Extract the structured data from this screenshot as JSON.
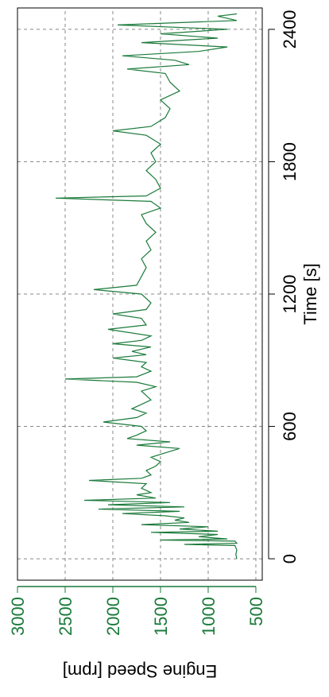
{
  "chart_data": {
    "type": "line",
    "xlabel": "Time [s]",
    "ylabel": "Engine Speed [rpm]",
    "x": [
      0,
      20,
      40,
      60,
      65,
      70,
      80,
      85,
      90,
      100,
      110,
      120,
      125,
      135,
      145,
      155,
      165,
      175,
      185,
      195,
      205,
      215,
      225,
      235,
      245,
      255,
      265,
      275,
      290,
      300,
      320,
      340,
      355,
      365,
      380,
      400,
      420,
      440,
      460,
      480,
      500,
      515,
      530,
      545,
      560,
      580,
      600,
      620,
      640,
      660,
      680,
      700,
      720,
      740,
      760,
      780,
      800,
      815,
      825,
      850,
      870,
      890,
      910,
      925,
      940,
      960,
      975,
      990,
      1010,
      1040,
      1060,
      1090,
      1110,
      1130,
      1160,
      1200,
      1220,
      1240,
      1280,
      1320,
      1360,
      1400,
      1440,
      1480,
      1520,
      1560,
      1590,
      1620,
      1635,
      1645,
      1680,
      1720,
      1760,
      1800,
      1840,
      1880,
      1920,
      1940,
      1960,
      2000,
      2040,
      2080,
      2120,
      2160,
      2200,
      2220,
      2240,
      2260,
      2280,
      2300,
      2320,
      2340,
      2360,
      2380,
      2400,
      2420,
      2440,
      2460,
      2470
    ],
    "values": [
      700,
      710,
      700,
      720,
      1250,
      700,
      720,
      1500,
      800,
      1100,
      900,
      1600,
      900,
      1300,
      1000,
      1700,
      1200,
      1350,
      1250,
      1450,
      1900,
      1300,
      2150,
      1250,
      2050,
      1400,
      2300,
      1550,
      1750,
      1600,
      1700,
      1650,
      2250,
      1700,
      1600,
      1650,
      1550,
      1500,
      1600,
      1450,
      1300,
      1750,
      1400,
      1850,
      1750,
      1650,
      1700,
      2100,
      1750,
      1650,
      1800,
      1700,
      1600,
      1650,
      1700,
      1550,
      1750,
      2500,
      1750,
      1600,
      1700,
      1650,
      2000,
      1650,
      1800,
      1600,
      2000,
      1700,
      1600,
      2050,
      1650,
      1700,
      2000,
      1650,
      1600,
      1700,
      2200,
      1750,
      1700,
      1650,
      1700,
      1600,
      1650,
      1550,
      1650,
      1700,
      1500,
      1600,
      2600,
      1650,
      1500,
      1550,
      1650,
      1550,
      1600,
      1500,
      1650,
      2000,
      1600,
      1450,
      1400,
      1500,
      1300,
      1400,
      1450,
      1850,
      1200,
      1350,
      1900,
      1100,
      800,
      1700,
      900,
      1500,
      800,
      1950,
      700,
      900,
      700
    ],
    "color": "#1a7a3a",
    "axis_color": "#1a7a3a",
    "xlim": [
      -97,
      2497
    ],
    "ylim": [
      433,
      3000
    ],
    "xticks": [
      0,
      600,
      1200,
      1800,
      2400
    ],
    "yticks": [
      500,
      1000,
      1500,
      2000,
      2500,
      3000
    ],
    "grid": true
  }
}
